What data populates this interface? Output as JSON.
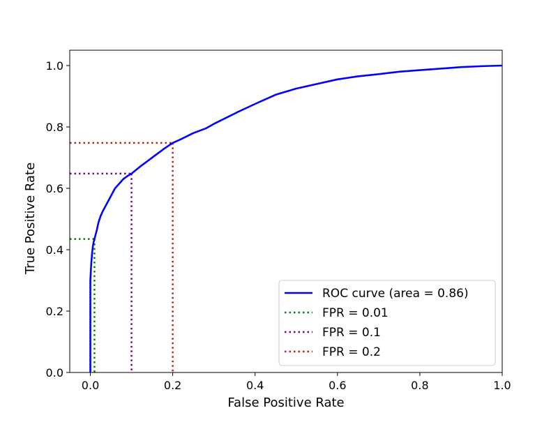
{
  "chart_data": {
    "type": "line",
    "title": "",
    "xlabel": "False Positive Rate",
    "ylabel": "True Positive Rate",
    "xlim": [
      -0.05,
      1.0
    ],
    "ylim": [
      0.0,
      1.05
    ],
    "grid": false,
    "legend_position": "lower-right",
    "xticks": [
      {
        "value": 0.0,
        "label": "0.0"
      },
      {
        "value": 0.2,
        "label": "0.2"
      },
      {
        "value": 0.4,
        "label": "0.4"
      },
      {
        "value": 0.6,
        "label": "0.6"
      },
      {
        "value": 0.8,
        "label": "0.8"
      },
      {
        "value": 1.0,
        "label": "1.0"
      }
    ],
    "yticks": [
      {
        "value": 0.0,
        "label": "0.0"
      },
      {
        "value": 0.2,
        "label": "0.2"
      },
      {
        "value": 0.4,
        "label": "0.4"
      },
      {
        "value": 0.6,
        "label": "0.6"
      },
      {
        "value": 0.8,
        "label": "0.8"
      },
      {
        "value": 1.0,
        "label": "1.0"
      }
    ],
    "roc_curve": {
      "name": "ROC curve (area = 0.86)",
      "color": "#0000ff",
      "x": [
        0.0,
        0.0,
        0.002,
        0.004,
        0.006,
        0.008,
        0.01,
        0.015,
        0.02,
        0.025,
        0.03,
        0.04,
        0.05,
        0.06,
        0.07,
        0.08,
        0.09,
        0.1,
        0.12,
        0.14,
        0.16,
        0.18,
        0.2,
        0.22,
        0.25,
        0.28,
        0.3,
        0.33,
        0.36,
        0.4,
        0.45,
        0.5,
        0.55,
        0.6,
        0.65,
        0.7,
        0.75,
        0.8,
        0.85,
        0.9,
        0.95,
        1.0
      ],
      "y": [
        0.0,
        0.3,
        0.35,
        0.385,
        0.41,
        0.425,
        0.435,
        0.46,
        0.49,
        0.51,
        0.525,
        0.55,
        0.575,
        0.6,
        0.615,
        0.63,
        0.64,
        0.648,
        0.67,
        0.69,
        0.71,
        0.73,
        0.748,
        0.76,
        0.78,
        0.795,
        0.81,
        0.83,
        0.85,
        0.875,
        0.905,
        0.925,
        0.94,
        0.955,
        0.965,
        0.972,
        0.98,
        0.985,
        0.99,
        0.995,
        0.998,
        1.0
      ]
    },
    "thresholds": [
      {
        "name": "FPR = 0.01",
        "fpr": 0.01,
        "tpr": 0.435,
        "color": "#008000"
      },
      {
        "name": "FPR = 0.1",
        "fpr": 0.1,
        "tpr": 0.648,
        "color": "#800080"
      },
      {
        "name": "FPR = 0.2",
        "fpr": 0.2,
        "tpr": 0.748,
        "color": "#b22222"
      }
    ]
  }
}
